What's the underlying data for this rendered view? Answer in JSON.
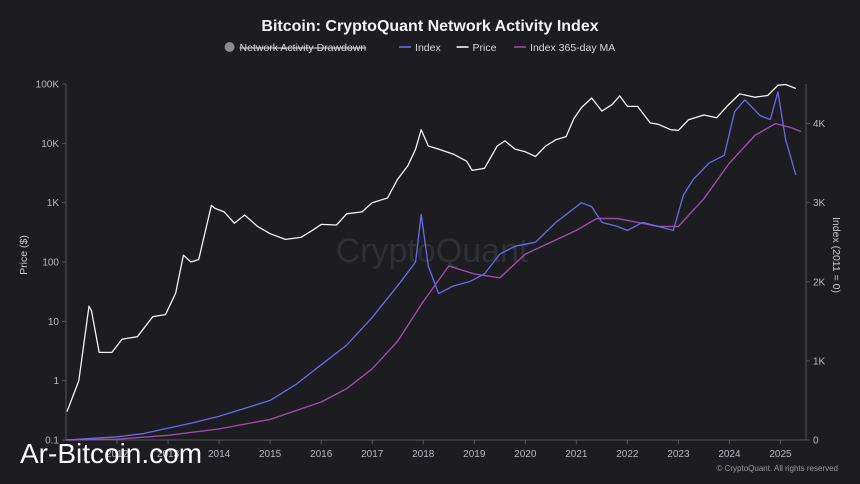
{
  "chart_data": {
    "type": "line",
    "title": "Bitcoin: CryptoQuant Network Activity Index",
    "watermark": "CryptoQuant",
    "source_mark": "Ar-Bitcoin.com",
    "credit": "© CryptoQuant. All rights reserved",
    "legend": [
      {
        "name": "Network Activity Drawdown",
        "color": "#8a8a92",
        "hidden": true,
        "marker": "circle"
      },
      {
        "name": "Index",
        "color": "#6b6be8",
        "marker": "line"
      },
      {
        "name": "Price",
        "color": "#f4f4f4",
        "marker": "line"
      },
      {
        "name": "Index 365-day MA",
        "color": "#9b4fa6",
        "marker": "line"
      }
    ],
    "legend_placement": "top-center",
    "grid": false,
    "x_ticks": [
      "2012",
      "2013",
      "2014",
      "2015",
      "2016",
      "2017",
      "2018",
      "2019",
      "2020",
      "2021",
      "2022",
      "2023",
      "2024",
      "2025"
    ],
    "xlim": [
      2011.0,
      2025.5
    ],
    "y_left": {
      "label": "Price ($)",
      "scale": "log",
      "lim": [
        0.1,
        100000
      ],
      "ticks": [
        "0.1",
        "1",
        "10",
        "100",
        "1K",
        "10K",
        "100K"
      ]
    },
    "y_right": {
      "label": "Index (2011 = 0)",
      "scale": "linear",
      "lim": [
        0,
        4500
      ],
      "ticks": [
        "0",
        "1K",
        "2K",
        "3K",
        "4K"
      ]
    },
    "series": [
      {
        "name": "Price",
        "axis": "left",
        "color": "#f4f4f4",
        "x": [
          2011.02,
          2011.25,
          2011.45,
          2011.5,
          2011.65,
          2011.9,
          2012.1,
          2012.4,
          2012.7,
          2012.95,
          2013.15,
          2013.3,
          2013.45,
          2013.6,
          2013.85,
          2013.92,
          2014.1,
          2014.3,
          2014.5,
          2014.75,
          2015.0,
          2015.3,
          2015.6,
          2015.85,
          2016.0,
          2016.3,
          2016.5,
          2016.8,
          2017.0,
          2017.3,
          2017.5,
          2017.7,
          2017.85,
          2017.96,
          2018.1,
          2018.3,
          2018.6,
          2018.85,
          2018.96,
          2019.2,
          2019.45,
          2019.6,
          2019.8,
          2020.0,
          2020.2,
          2020.4,
          2020.6,
          2020.8,
          2020.95,
          2021.1,
          2021.3,
          2021.5,
          2021.7,
          2021.85,
          2022.0,
          2022.2,
          2022.45,
          2022.6,
          2022.85,
          2023.0,
          2023.2,
          2023.5,
          2023.75,
          2023.95,
          2024.2,
          2024.5,
          2024.75,
          2024.95,
          2025.1,
          2025.3
        ],
        "y": [
          0.3,
          1.0,
          18,
          15,
          3,
          3,
          5,
          5.5,
          12,
          13,
          30,
          130,
          100,
          110,
          900,
          800,
          700,
          450,
          620,
          400,
          300,
          240,
          260,
          350,
          430,
          420,
          650,
          700,
          1000,
          1200,
          2500,
          4200,
          8000,
          17000,
          9000,
          8000,
          6500,
          5000,
          3500,
          3800,
          9000,
          11000,
          8000,
          7200,
          6000,
          9000,
          11500,
          13000,
          26000,
          40000,
          58000,
          35000,
          45000,
          63000,
          42000,
          42000,
          22000,
          21000,
          17000,
          16500,
          25000,
          30000,
          27000,
          42000,
          68000,
          60000,
          64000,
          95000,
          98000,
          84000
        ]
      },
      {
        "name": "Index",
        "axis": "right",
        "color": "#6b6be8",
        "x": [
          2011.0,
          2011.5,
          2012.0,
          2012.5,
          2013.0,
          2013.5,
          2014.0,
          2014.5,
          2015.0,
          2015.5,
          2016.0,
          2016.5,
          2017.0,
          2017.5,
          2017.85,
          2017.96,
          2018.1,
          2018.3,
          2018.6,
          2018.9,
          2019.2,
          2019.5,
          2019.8,
          2020.2,
          2020.6,
          2020.9,
          2021.1,
          2021.3,
          2021.5,
          2021.8,
          2022.0,
          2022.3,
          2022.6,
          2022.9,
          2023.1,
          2023.3,
          2023.6,
          2023.9,
          2024.1,
          2024.3,
          2024.6,
          2024.8,
          2024.95,
          2025.1,
          2025.3
        ],
        "y": [
          0,
          20,
          40,
          80,
          150,
          220,
          300,
          400,
          500,
          700,
          950,
          1200,
          1550,
          1950,
          2250,
          2850,
          2200,
          1850,
          1950,
          2000,
          2100,
          2350,
          2450,
          2500,
          2750,
          2900,
          3000,
          2950,
          2750,
          2700,
          2650,
          2750,
          2700,
          2650,
          3100,
          3300,
          3500,
          3600,
          4150,
          4300,
          4100,
          4050,
          4400,
          3800,
          3350
        ]
      },
      {
        "name": "Index 365-day MA",
        "axis": "right",
        "color": "#9b4fa6",
        "x": [
          2011.0,
          2012.0,
          2013.0,
          2014.0,
          2015.0,
          2016.0,
          2016.5,
          2017.0,
          2017.5,
          2018.0,
          2018.5,
          2019.0,
          2019.5,
          2020.0,
          2020.5,
          2021.0,
          2021.4,
          2021.8,
          2022.2,
          2022.6,
          2023.0,
          2023.5,
          2024.0,
          2024.5,
          2024.9,
          2025.2,
          2025.4
        ],
        "y": [
          0,
          10,
          60,
          140,
          260,
          480,
          650,
          900,
          1250,
          1750,
          2200,
          2100,
          2050,
          2350,
          2500,
          2650,
          2800,
          2800,
          2750,
          2700,
          2700,
          3050,
          3500,
          3850,
          4000,
          3950,
          3900
        ]
      }
    ]
  }
}
